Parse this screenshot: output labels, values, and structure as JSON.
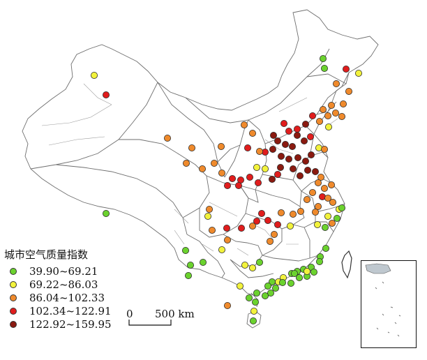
{
  "legend": {
    "title": "城市空气质量指数",
    "classes": [
      {
        "label": "39.90~69.21",
        "color": "#6bd22e"
      },
      {
        "label": "69.22~86.03",
        "color": "#f2f23c"
      },
      {
        "label": "86.04~102.33",
        "color": "#ef8a2c"
      },
      {
        "label": "102.34~122.91",
        "color": "#e01d1d"
      },
      {
        "label": "122.92~159.95",
        "color": "#8a1a10"
      }
    ]
  },
  "scale_bar": {
    "start": "0",
    "end": "500 km"
  },
  "colors": {
    "boundary": "#6e6e6e",
    "dot_outline": "#2b2b2b",
    "background": "#ffffff"
  }
}
